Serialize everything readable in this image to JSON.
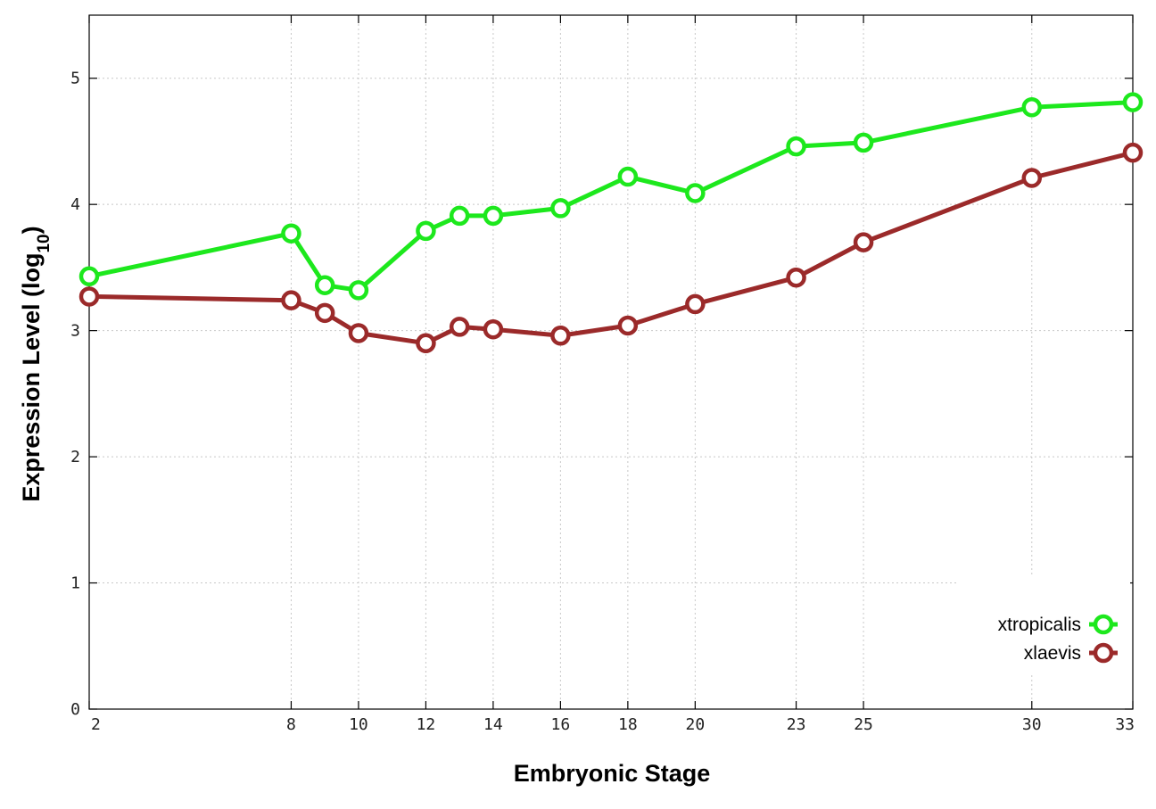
{
  "chart_data": {
    "type": "line",
    "title": "",
    "xlabel": "Embryonic Stage",
    "ylabel_main": "Expression Level (log",
    "ylabel_sub": "10",
    "ylabel_close": ")",
    "xlim": [
      2,
      33
    ],
    "ylim": [
      0,
      5.5
    ],
    "x_ticks": [
      2,
      8,
      10,
      12,
      14,
      16,
      18,
      20,
      23,
      25,
      30,
      33
    ],
    "x_tick_labels": [
      "2",
      "8",
      "10",
      "12",
      "14",
      "16",
      "18",
      "20",
      "23",
      "25",
      "30",
      "33"
    ],
    "y_ticks": [
      0,
      1,
      2,
      3,
      4,
      5
    ],
    "y_tick_labels": [
      "0",
      "1",
      "2",
      "3",
      "4",
      "5"
    ],
    "grid": true,
    "legend_position": "bottom-right",
    "x": [
      2,
      8,
      9,
      10,
      12,
      13,
      14,
      16,
      18,
      20,
      23,
      25,
      30,
      33
    ],
    "series": [
      {
        "name": "xtropicalis",
        "color": "#1de81d",
        "values": [
          3.43,
          3.77,
          3.36,
          3.32,
          3.79,
          3.91,
          3.91,
          3.97,
          4.22,
          4.09,
          4.46,
          4.49,
          4.77,
          4.81
        ]
      },
      {
        "name": "xlaevis",
        "color": "#9b2a2a",
        "values": [
          3.27,
          3.24,
          3.14,
          2.98,
          2.9,
          3.03,
          3.01,
          2.96,
          3.04,
          3.21,
          3.42,
          3.7,
          4.21,
          4.41
        ]
      }
    ]
  }
}
